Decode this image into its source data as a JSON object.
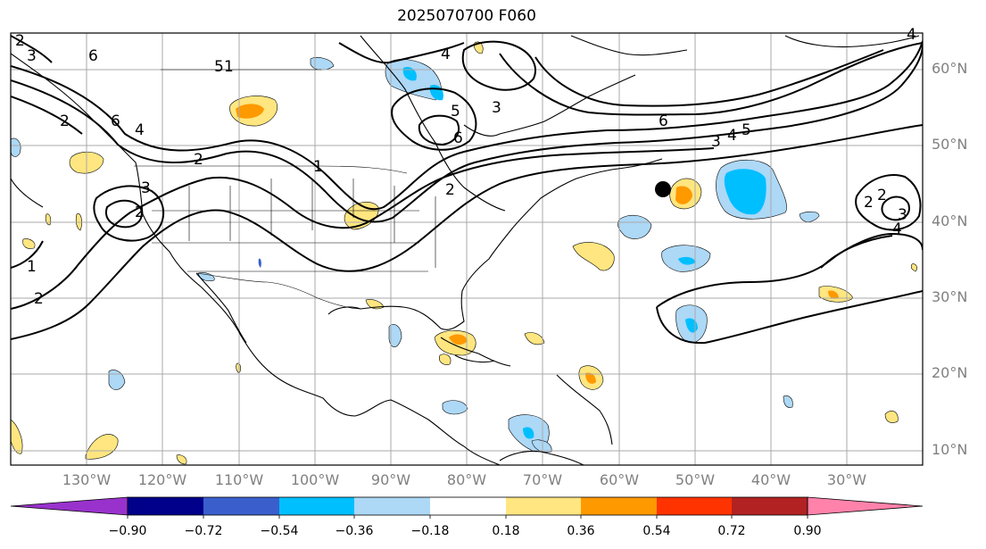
{
  "title": "2025070700 F060",
  "lat_labels": [
    "60°N",
    "50°N",
    "40°N",
    "30°N",
    "20°N",
    "10°N"
  ],
  "lon_labels": [
    "130°W",
    "120°W",
    "110°W",
    "100°W",
    "90°W",
    "80°W",
    "70°W",
    "60°W",
    "50°W",
    "40°W",
    "30°W"
  ],
  "colorbar": {
    "ticks": [
      "−0.90",
      "−0.72",
      "−0.54",
      "−0.36",
      "−0.18",
      "0.18",
      "0.36",
      "0.54",
      "0.72",
      "0.90"
    ],
    "colors": [
      "#9932cc",
      "#00008b",
      "#3a5fcd",
      "#00bfff",
      "#add8f6",
      "#ffffff",
      "#ffe680",
      "#ff9900",
      "#ff3300",
      "#b22222",
      "#ff82ab"
    ]
  },
  "contour_labels": [
    "2",
    "3",
    "6",
    "5",
    "2",
    "6",
    "4",
    "2",
    "3",
    "2",
    "1",
    "1",
    "2",
    "5",
    "3",
    "6",
    "4",
    "6",
    "3",
    "4",
    "5",
    "2",
    "2",
    "4",
    "3",
    "2",
    "1",
    "4"
  ],
  "colors": {
    "land_outline": "#000000",
    "grid": "#a9a9a9",
    "contour": "#000000"
  }
}
